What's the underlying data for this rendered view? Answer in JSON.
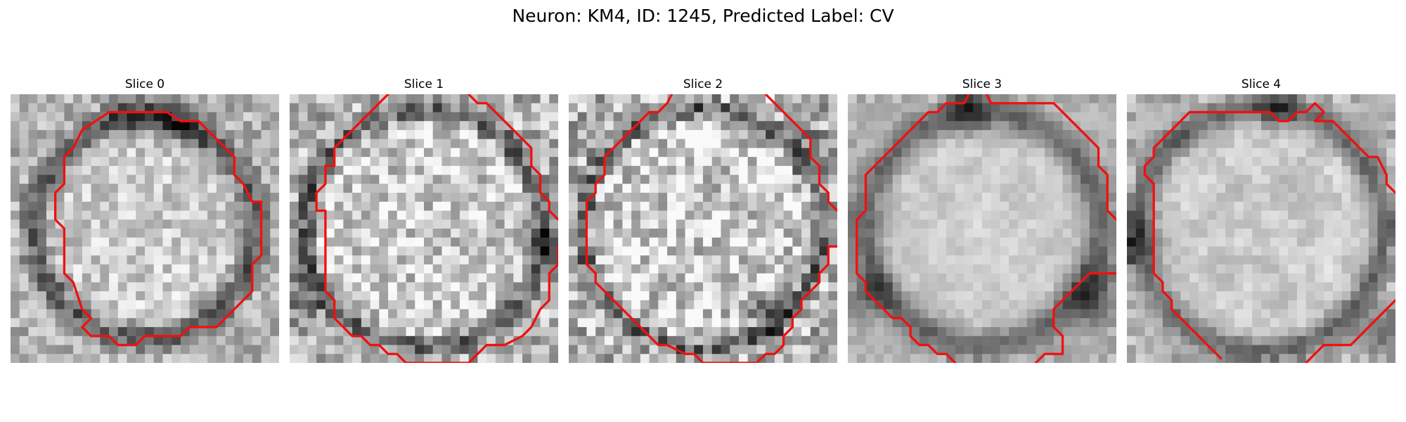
{
  "figure": {
    "title": "Neuron: KM4, ID: 1245, Predicted Label: CV"
  },
  "palette": {
    "contour_color": "#ee1111"
  },
  "slices": [
    {
      "label": "Slice 0"
    },
    {
      "label": "Slice 1"
    },
    {
      "label": "Slice 2"
    },
    {
      "label": "Slice 3"
    },
    {
      "label": "Slice 4"
    }
  ]
}
